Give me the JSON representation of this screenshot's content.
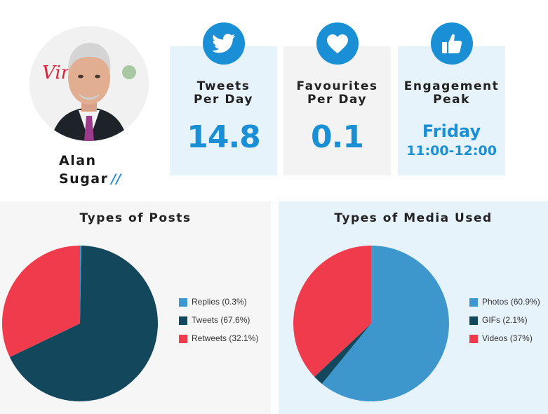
{
  "profile": {
    "name_line1": "Alan",
    "name_line2": "Sugar",
    "slashes": "//"
  },
  "stats": [
    {
      "icon": "twitter-bird-icon",
      "title_line1": "Tweets",
      "title_line2": "Per Day",
      "value": "14.8"
    },
    {
      "icon": "heart-icon",
      "title_line1": "Favourites",
      "title_line2": "Per Day",
      "value": "0.1"
    },
    {
      "icon": "thumbs-up-icon",
      "title_line1": "Engagement",
      "title_line2": "Peak",
      "value_day": "Friday",
      "value_time": "11:00-12:00"
    }
  ],
  "colors": {
    "accent": "#1b8fd6",
    "light_blue": "#3e97cc",
    "dark_teal": "#13475c",
    "red": "#ef3b4b"
  },
  "chart_data": [
    {
      "type": "pie",
      "title": "Types of Posts",
      "legend_position": "right",
      "slices": [
        {
          "label": "Replies (0.3%)",
          "value": 0.3,
          "color": "#3e97cc"
        },
        {
          "label": "Tweets (67.6%)",
          "value": 67.6,
          "color": "#13475c"
        },
        {
          "label": "Retweets (32.1%)",
          "value": 32.1,
          "color": "#ef3b4b"
        }
      ]
    },
    {
      "type": "pie",
      "title": "Types of Media Used",
      "legend_position": "right",
      "slices": [
        {
          "label": "Photos (60.9%)",
          "value": 60.9,
          "color": "#3e97cc"
        },
        {
          "label": "GIFs (2.1%)",
          "value": 2.1,
          "color": "#13475c"
        },
        {
          "label": "Videos (37%)",
          "value": 37,
          "color": "#ef3b4b"
        }
      ]
    }
  ]
}
